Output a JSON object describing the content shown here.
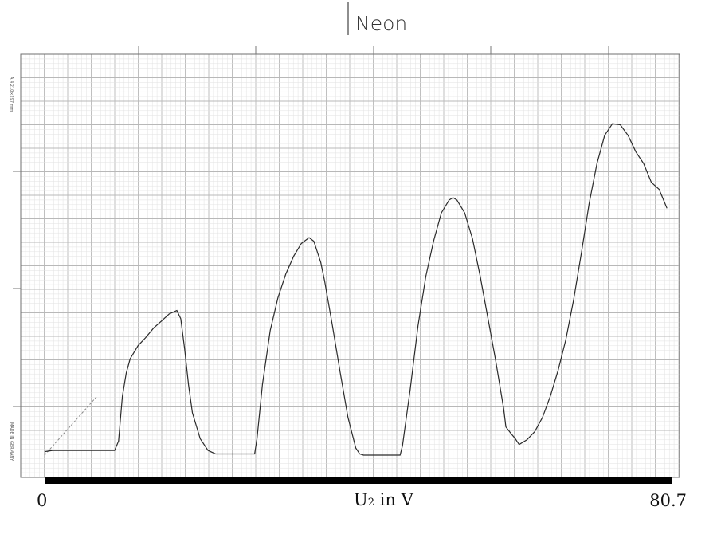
{
  "chart_data": {
    "type": "line",
    "title": "Neon",
    "xlabel_main": "U",
    "xlabel_sub": "2",
    "xlabel_rest": " in V",
    "xlim": [
      0,
      80.7
    ],
    "x_tick_labels": [
      "0",
      "80.7"
    ],
    "paper_labels": {
      "top_left": "A 4  210×297 mm",
      "bottom_left": "MADE IN GERMANY"
    },
    "grid": true,
    "series": [
      {
        "x": [
          0.0,
          1.0,
          3.0,
          6.0,
          9.0,
          9.5,
          10.0,
          10.5,
          11.0,
          12.0,
          13.0,
          14.0,
          15.0,
          16.0,
          17.0,
          17.5,
          18.0,
          18.5,
          19.0,
          20.0,
          21.0,
          22.0,
          23.0,
          24.0,
          25.0,
          26.0,
          27.0,
          27.3,
          28.0,
          29.0,
          30.0,
          31.0,
          32.0,
          33.0,
          34.0,
          34.6,
          35.5,
          36.0,
          37.0,
          38.0,
          39.0,
          40.0,
          40.5,
          41.0,
          41.5,
          43.0,
          45.0,
          45.7,
          46.0,
          47.0,
          48.0,
          49.0,
          50.0,
          51.0,
          52.0,
          52.5,
          53.0,
          54.0,
          55.0,
          56.0,
          57.0,
          58.0,
          59.0,
          59.3,
          60.0,
          60.5,
          61.0,
          62.0,
          63.0,
          64.0,
          65.0,
          66.0,
          67.0,
          68.0,
          69.0,
          70.0,
          71.0,
          72.0,
          73.0,
          74.0,
          75.0,
          76.0,
          77.0,
          78.0,
          79.0,
          80.0
        ],
        "y": [
          0.15,
          0.2,
          0.2,
          0.2,
          0.2,
          0.6,
          2.5,
          3.5,
          4.1,
          4.65,
          5.0,
          5.4,
          5.7,
          6.0,
          6.15,
          5.8,
          4.5,
          3.0,
          1.8,
          0.7,
          0.2,
          0.05,
          0.05,
          0.05,
          0.05,
          0.05,
          0.05,
          0.7,
          3.0,
          5.3,
          6.7,
          7.7,
          8.45,
          9.0,
          9.25,
          9.1,
          8.2,
          7.4,
          5.5,
          3.5,
          1.6,
          0.3,
          0.05,
          0.0,
          0.0,
          0.0,
          0.0,
          0.0,
          0.4,
          2.8,
          5.5,
          7.6,
          9.1,
          10.3,
          10.85,
          10.95,
          10.85,
          10.3,
          9.2,
          7.6,
          5.8,
          4.0,
          2.0,
          1.2,
          0.9,
          0.7,
          0.45,
          0.65,
          1.0,
          1.6,
          2.5,
          3.6,
          4.9,
          6.6,
          8.6,
          10.7,
          12.4,
          13.6,
          14.1,
          14.05,
          13.6,
          12.9,
          12.4,
          11.6,
          11.3,
          10.5
        ]
      }
    ]
  }
}
